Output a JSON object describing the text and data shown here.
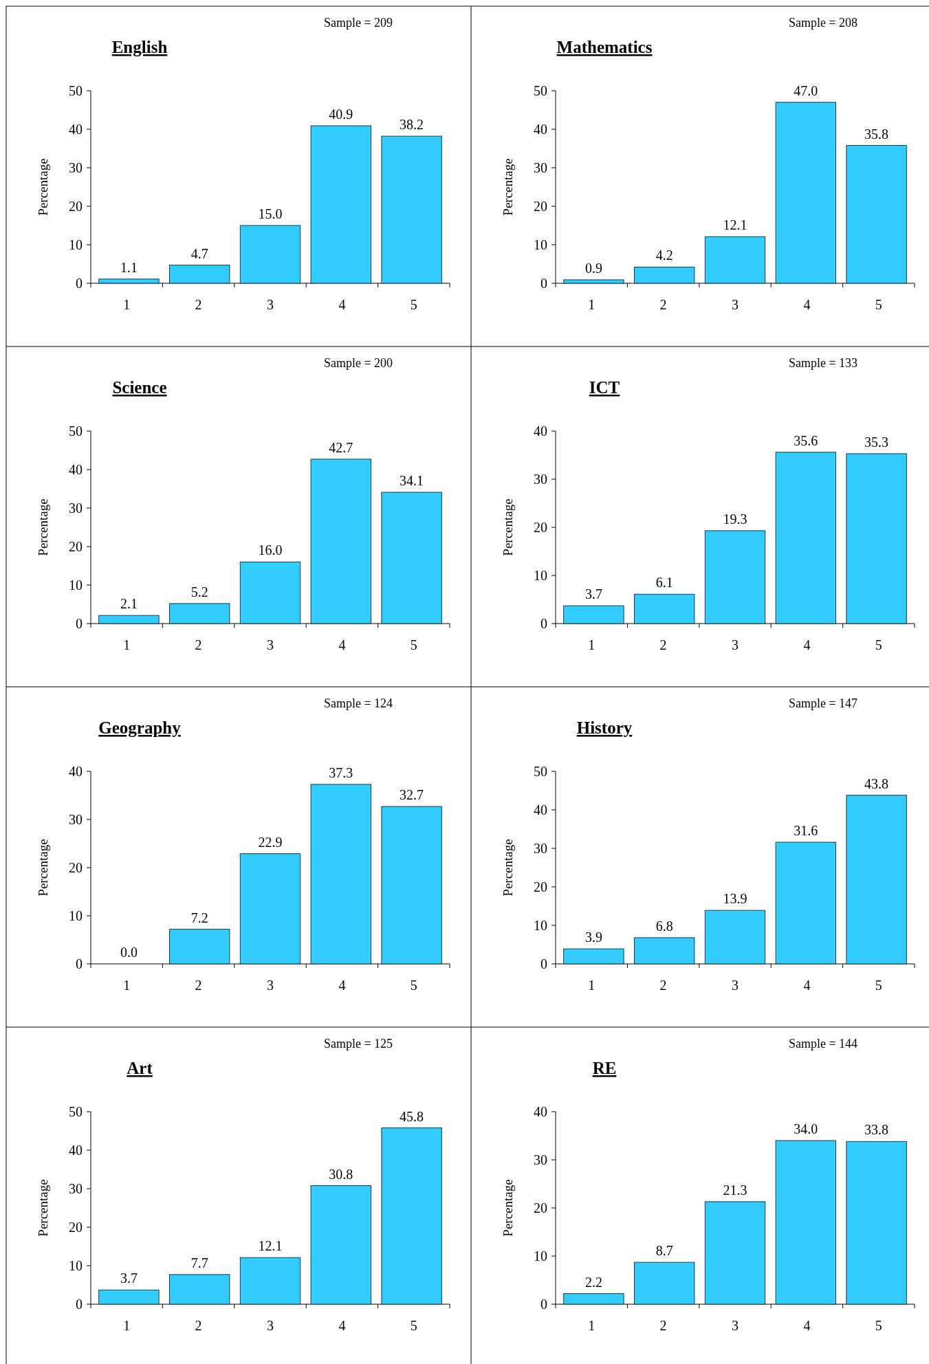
{
  "chart_data": [
    {
      "type": "bar",
      "title": "English",
      "annotations": [
        "Sample = 209"
      ],
      "ylabel": "Percentage",
      "categories": [
        "1",
        "2",
        "3",
        "4",
        "5"
      ],
      "values": [
        1.1,
        4.7,
        15.0,
        40.9,
        38.2
      ],
      "value_labels": [
        "1.1",
        "4.7",
        "15.0",
        "40.9",
        "38.2"
      ],
      "color": "#33ccff",
      "ylim": [
        0,
        50
      ],
      "yticks": [
        0,
        10,
        20,
        30,
        40,
        50
      ]
    },
    {
      "type": "bar",
      "title": "Mathematics",
      "annotations": [
        "Sample = 208"
      ],
      "ylabel": "Percentage",
      "categories": [
        "1",
        "2",
        "3",
        "4",
        "5"
      ],
      "values": [
        0.9,
        4.2,
        12.1,
        47.0,
        35.8
      ],
      "value_labels": [
        "0.9",
        "4.2",
        "12.1",
        "47.0",
        "35.8"
      ],
      "color": "#33ccff",
      "ylim": [
        0,
        50
      ],
      "yticks": [
        0,
        10,
        20,
        30,
        40,
        50
      ]
    },
    {
      "type": "bar",
      "title": "Science",
      "annotations": [
        "Sample = 200"
      ],
      "ylabel": "Percentage",
      "categories": [
        "1",
        "2",
        "3",
        "4",
        "5"
      ],
      "values": [
        2.1,
        5.2,
        16.0,
        42.7,
        34.1
      ],
      "value_labels": [
        "2.1",
        "5.2",
        "16.0",
        "42.7",
        "34.1"
      ],
      "color": "#33ccff",
      "ylim": [
        0,
        50
      ],
      "yticks": [
        0,
        10,
        20,
        30,
        40,
        50
      ]
    },
    {
      "type": "bar",
      "title": "ICT",
      "annotations": [
        "Sample = 133"
      ],
      "ylabel": "Percentage",
      "categories": [
        "1",
        "2",
        "3",
        "4",
        "5"
      ],
      "values": [
        3.7,
        6.1,
        19.3,
        35.6,
        35.3
      ],
      "value_labels": [
        "3.7",
        "6.1",
        "19.3",
        "35.6",
        "35.3"
      ],
      "color": "#33ccff",
      "ylim": [
        0,
        40
      ],
      "yticks": [
        0,
        10,
        20,
        30,
        40
      ]
    },
    {
      "type": "bar",
      "title": "Geography",
      "annotations": [
        "Sample = 124"
      ],
      "ylabel": "Percentage",
      "categories": [
        "1",
        "2",
        "3",
        "4",
        "5"
      ],
      "values": [
        0.0,
        7.2,
        22.9,
        37.3,
        32.7
      ],
      "value_labels": [
        "0.0",
        "7.2",
        "22.9",
        "37.3",
        "32.7"
      ],
      "color": "#33ccff",
      "ylim": [
        0,
        40
      ],
      "yticks": [
        0,
        10,
        20,
        30,
        40
      ]
    },
    {
      "type": "bar",
      "title": "History",
      "annotations": [
        "Sample = 147"
      ],
      "ylabel": "Percentage",
      "categories": [
        "1",
        "2",
        "3",
        "4",
        "5"
      ],
      "values": [
        3.9,
        6.8,
        13.9,
        31.6,
        43.8
      ],
      "value_labels": [
        "3.9",
        "6.8",
        "13.9",
        "31.6",
        "43.8"
      ],
      "color": "#33ccff",
      "ylim": [
        0,
        50
      ],
      "yticks": [
        0,
        10,
        20,
        30,
        40,
        50
      ]
    },
    {
      "type": "bar",
      "title": "Art",
      "annotations": [
        "Sample = 125"
      ],
      "ylabel": "Percentage",
      "categories": [
        "1",
        "2",
        "3",
        "4",
        "5"
      ],
      "values": [
        3.7,
        7.7,
        12.1,
        30.8,
        45.8
      ],
      "value_labels": [
        "3.7",
        "7.7",
        "12.1",
        "30.8",
        "45.8"
      ],
      "color": "#33ccff",
      "ylim": [
        0,
        50
      ],
      "yticks": [
        0,
        10,
        20,
        30,
        40,
        50
      ]
    },
    {
      "type": "bar",
      "title": "RE",
      "annotations": [
        "Sample = 144"
      ],
      "ylabel": "Percentage",
      "categories": [
        "1",
        "2",
        "3",
        "4",
        "5"
      ],
      "values": [
        2.2,
        8.7,
        21.3,
        34.0,
        33.8
      ],
      "value_labels": [
        "2.2",
        "8.7",
        "21.3",
        "34.0",
        "33.8"
      ],
      "color": "#33ccff",
      "ylim": [
        0,
        40
      ],
      "yticks": [
        0,
        10,
        20,
        30,
        40
      ]
    }
  ]
}
